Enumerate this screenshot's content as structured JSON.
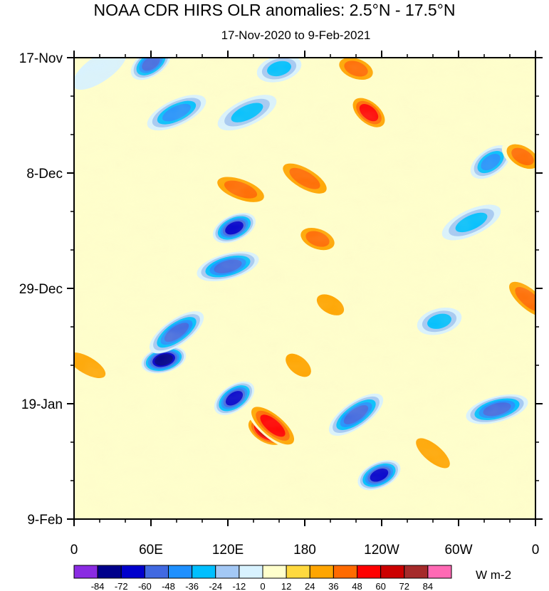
{
  "header": {
    "title": "NOAA CDR HIRS OLR anomalies: 2.5°N - 17.5°N",
    "subtitle": "17-Nov-2020 to 9-Feb-2021"
  },
  "colorbar": {
    "units": "W m-2",
    "levels": [
      "-84",
      "-72",
      "-60",
      "-48",
      "-36",
      "-24",
      "-12",
      "0",
      "12",
      "24",
      "36",
      "48",
      "60",
      "72",
      "84"
    ],
    "colors": [
      "#8a2be2",
      "#00008b",
      "#0000cd",
      "#4169e1",
      "#1e90ff",
      "#00bfff",
      "#a3c8f5",
      "#d8f2ff",
      "#ffffcc",
      "#ffd93f",
      "#ffa500",
      "#ff6a00",
      "#ff0000",
      "#cc0000",
      "#a52a2a",
      "#ff69b4"
    ]
  },
  "chart_data": {
    "type": "heatmap",
    "title": "NOAA CDR HIRS OLR anomalies: 2.5°N - 17.5°N",
    "subtitle": "17-Nov-2020 to 9-Feb-2021",
    "x_ticks": [
      {
        "lon": 0,
        "label": "0"
      },
      {
        "lon": 60,
        "label": "60E"
      },
      {
        "lon": 120,
        "label": "120E"
      },
      {
        "lon": 180,
        "label": "180"
      },
      {
        "lon": 240,
        "label": "120W"
      },
      {
        "lon": 300,
        "label": "60W"
      },
      {
        "lon": 360,
        "label": "0"
      }
    ],
    "x_range": [
      0,
      360
    ],
    "y_ticks": [
      {
        "day": 0,
        "label": "17-Nov"
      },
      {
        "day": 21,
        "label": "8-Dec"
      },
      {
        "day": 42,
        "label": "29-Dec"
      },
      {
        "day": 63,
        "label": "19-Jan"
      },
      {
        "day": 84,
        "label": "9-Feb"
      }
    ],
    "y_range_days": [
      0,
      84
    ],
    "units": "W m-2",
    "anomaly_features": [
      {
        "lon": 60,
        "day": 1,
        "value": -60
      },
      {
        "lon": 80,
        "day": 10,
        "value": -48
      },
      {
        "lon": 70,
        "day": 55,
        "value": -84
      },
      {
        "lon": 80,
        "day": 50,
        "value": -60
      },
      {
        "lon": 125,
        "day": 31,
        "value": -72
      },
      {
        "lon": 120,
        "day": 38,
        "value": -60
      },
      {
        "lon": 125,
        "day": 62,
        "value": -72
      },
      {
        "lon": 135,
        "day": 10,
        "value": -36
      },
      {
        "lon": 160,
        "day": 2,
        "value": -36
      },
      {
        "lon": 220,
        "day": 65,
        "value": -60
      },
      {
        "lon": 238,
        "day": 76,
        "value": -72
      },
      {
        "lon": 330,
        "day": 64,
        "value": -60
      },
      {
        "lon": 325,
        "day": 19,
        "value": -48
      },
      {
        "lon": 310,
        "day": 30,
        "value": -36
      },
      {
        "lon": 285,
        "day": 48,
        "value": -36
      },
      {
        "lon": 20,
        "day": 2,
        "value": -12
      },
      {
        "lon": 150,
        "day": 68,
        "value": 60
      },
      {
        "lon": 155,
        "day": 67,
        "value": 48
      },
      {
        "lon": 190,
        "day": 33,
        "value": 36
      },
      {
        "lon": 180,
        "day": 22,
        "value": 36
      },
      {
        "lon": 230,
        "day": 10,
        "value": 48
      },
      {
        "lon": 130,
        "day": 24,
        "value": 36
      },
      {
        "lon": 350,
        "day": 18,
        "value": 36
      },
      {
        "lon": 355,
        "day": 44,
        "value": 36
      },
      {
        "lon": 220,
        "day": 2,
        "value": 36
      },
      {
        "lon": 10,
        "day": 56,
        "value": 24
      },
      {
        "lon": 175,
        "day": 56,
        "value": 24
      },
      {
        "lon": 20,
        "day": 30,
        "value": 12
      },
      {
        "lon": 200,
        "day": 45,
        "value": 24
      },
      {
        "lon": 280,
        "day": 72,
        "value": 24
      }
    ]
  }
}
